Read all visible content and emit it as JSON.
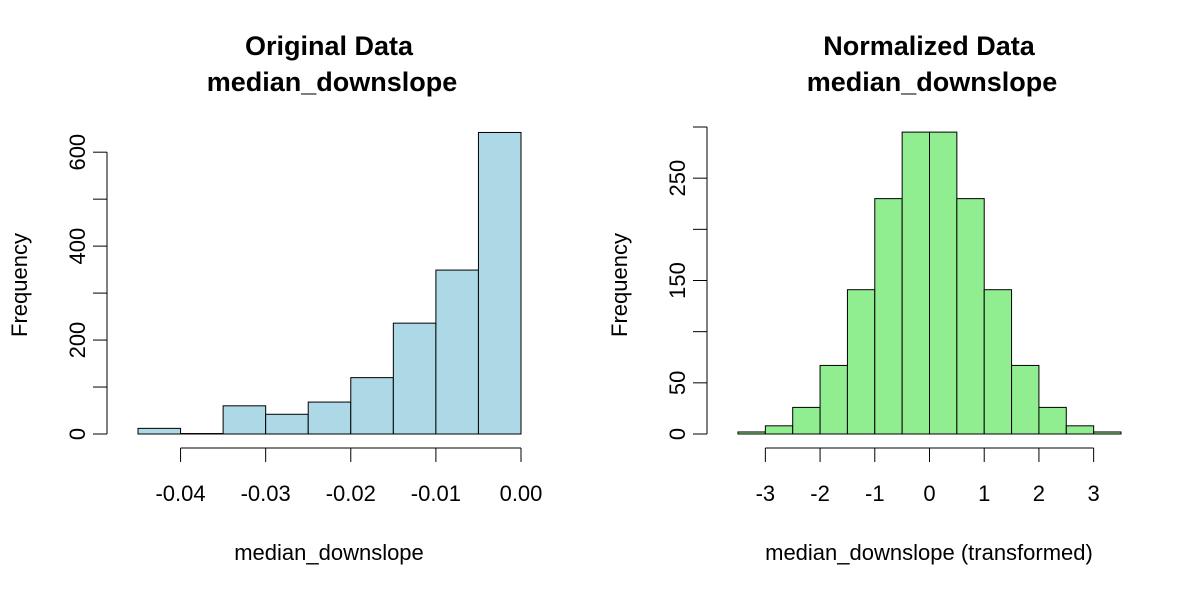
{
  "chart_data": [
    {
      "type": "bar",
      "title": [
        "Original Data",
        "median_downslope"
      ],
      "xlabel": "median_downslope",
      "ylabel": "Frequency",
      "bar_color": "#add8e6",
      "bin_edges": [
        -0.045,
        -0.04,
        -0.035,
        -0.03,
        -0.025,
        -0.02,
        -0.015,
        -0.01,
        -0.005,
        0.0
      ],
      "values": [
        12,
        1,
        60,
        42,
        68,
        120,
        236,
        349,
        642
      ],
      "xticks": [
        -0.04,
        -0.03,
        -0.02,
        -0.01,
        0.0
      ],
      "xtick_labels": [
        "-0.04",
        "-0.03",
        "-0.02",
        "-0.01",
        "0.00"
      ],
      "yticks": [
        0,
        100,
        200,
        300,
        400,
        500,
        600
      ],
      "ytick_labels": [
        "0",
        "",
        "200",
        "",
        "400",
        "",
        "600"
      ],
      "xlim": [
        -0.045,
        0.0
      ],
      "ylim": [
        0,
        660
      ]
    },
    {
      "type": "bar",
      "title": [
        "Normalized Data",
        "median_downslope"
      ],
      "xlabel": "median_downslope (transformed)",
      "ylabel": "Frequency",
      "bar_color": "#90ee90",
      "bin_edges": [
        -3.5,
        -3.0,
        -2.5,
        -2.0,
        -1.5,
        -1.0,
        -0.5,
        0.0,
        0.5,
        1.0,
        1.5,
        2.0,
        2.5,
        3.0,
        3.5
      ],
      "values": [
        2,
        8,
        26,
        67,
        141,
        230,
        295,
        295,
        230,
        141,
        67,
        26,
        8,
        2
      ],
      "xticks": [
        -3,
        -2,
        -1,
        0,
        1,
        2,
        3
      ],
      "xtick_labels": [
        "-3",
        "-2",
        "-1",
        "0",
        "1",
        "2",
        "3"
      ],
      "yticks": [
        0,
        50,
        100,
        150,
        200,
        250,
        300
      ],
      "ytick_labels": [
        "0",
        "50",
        "",
        "150",
        "",
        "250",
        ""
      ],
      "xlim": [
        -3.5,
        3.5
      ],
      "ylim": [
        0,
        300
      ]
    }
  ]
}
